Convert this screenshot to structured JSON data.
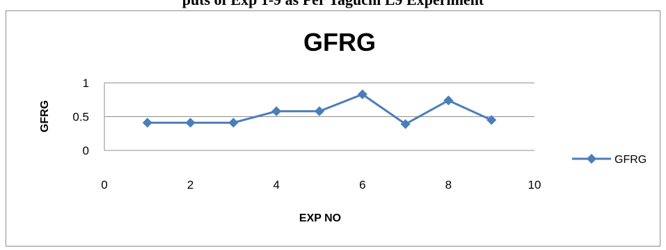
{
  "page": {
    "top_text_partial": "puts of Exp 1-9 as Per Taguchi L9 Experiment"
  },
  "chart_data": {
    "type": "line",
    "title": "GFRG",
    "xlabel": "EXP NO",
    "ylabel": "GFRG",
    "xlim": [
      0,
      10
    ],
    "ylim": [
      0,
      1
    ],
    "x_ticks": [
      "0",
      "2",
      "4",
      "6",
      "8",
      "10"
    ],
    "y_ticks": [
      "0",
      "0.5",
      "1"
    ],
    "grid": "horizontal",
    "legend_position": "right",
    "series_color": "#4a7ebb",
    "series": [
      {
        "name": "GFRG",
        "x": [
          1,
          2,
          3,
          4,
          5,
          6,
          7,
          8,
          9
        ],
        "values": [
          0.41,
          0.41,
          0.41,
          0.58,
          0.58,
          0.83,
          0.39,
          0.74,
          0.45
        ]
      }
    ]
  }
}
